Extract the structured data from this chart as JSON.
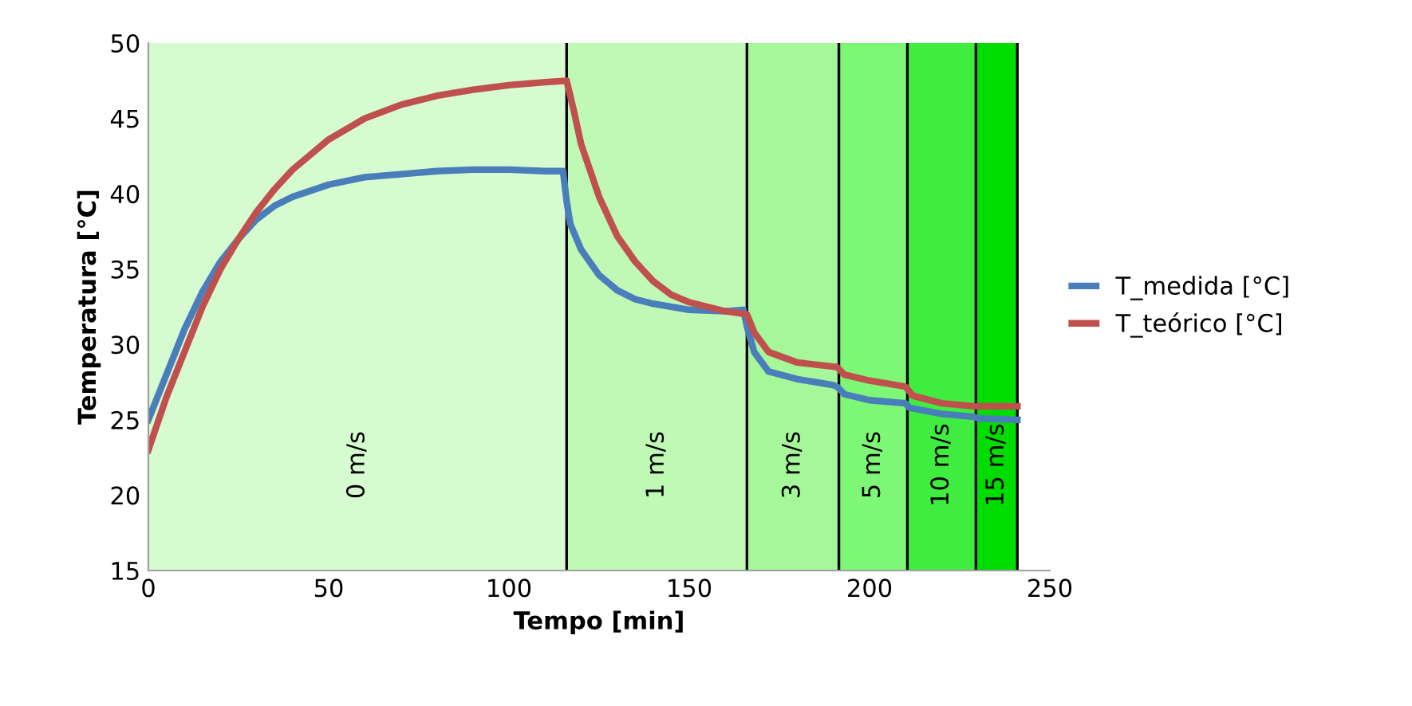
{
  "chart_data": {
    "type": "line",
    "xlabel": "Tempo [min]",
    "ylabel": "Temperatura [°C]",
    "xlim": [
      0,
      250
    ],
    "xticks": [
      0,
      50,
      100,
      150,
      200,
      250
    ],
    "ylim": [
      15,
      50
    ],
    "yticks": [
      15,
      20,
      25,
      30,
      35,
      40,
      45,
      50
    ],
    "grid": false,
    "legend": "right",
    "series": [
      {
        "name": "T_medida [°C]",
        "color": "#4a7ebb",
        "x": [
          0,
          5,
          10,
          15,
          20,
          25,
          30,
          35,
          40,
          50,
          60,
          70,
          80,
          90,
          100,
          110,
          115,
          116,
          117,
          120,
          125,
          130,
          135,
          140,
          150,
          160,
          165,
          166,
          168,
          172,
          180,
          190,
          191,
          193,
          200,
          210,
          211,
          220,
          229,
          230,
          241
        ],
        "values": [
          25,
          28,
          31,
          33.5,
          35.5,
          37,
          38.3,
          39.2,
          39.8,
          40.6,
          41.1,
          41.3,
          41.5,
          41.6,
          41.6,
          41.5,
          41.5,
          39.5,
          38,
          36.3,
          34.6,
          33.6,
          33,
          32.7,
          32.3,
          32.2,
          32.3,
          31.2,
          29.5,
          28.2,
          27.7,
          27.3,
          27.2,
          26.7,
          26.3,
          26.1,
          25.8,
          25.4,
          25.2,
          25.1,
          25
        ]
      },
      {
        "name": "T_teórico [°C]",
        "color": "#c0504d",
        "x": [
          0,
          5,
          10,
          15,
          20,
          25,
          30,
          35,
          40,
          50,
          60,
          70,
          80,
          90,
          100,
          110,
          116,
          118,
          120,
          125,
          130,
          135,
          140,
          145,
          150,
          160,
          166,
          168,
          172,
          180,
          191,
          193,
          200,
          210,
          212,
          220,
          229,
          241
        ],
        "values": [
          23,
          26.5,
          29.5,
          32.5,
          35,
          37,
          38.8,
          40.3,
          41.6,
          43.6,
          45,
          45.9,
          46.5,
          46.9,
          47.2,
          47.4,
          47.5,
          45.5,
          43.3,
          39.8,
          37.2,
          35.5,
          34.2,
          33.3,
          32.8,
          32.2,
          32,
          30.8,
          29.5,
          28.8,
          28.5,
          28,
          27.6,
          27.2,
          26.6,
          26.1,
          25.9,
          25.9
        ]
      }
    ],
    "bands": [
      {
        "axis": "x",
        "from": 0,
        "to": 116,
        "label": "0 m/s",
        "color": "#d7fbd1"
      },
      {
        "axis": "x",
        "from": 116,
        "to": 166,
        "label": "1 m/s",
        "color": "#c0f9b5"
      },
      {
        "axis": "x",
        "from": 166,
        "to": 191.5,
        "label": "3 m/s",
        "color": "#a5f79a"
      },
      {
        "axis": "x",
        "from": 191.5,
        "to": 210.5,
        "label": "5 m/s",
        "color": "#7df775"
      },
      {
        "axis": "x",
        "from": 210.5,
        "to": 229.5,
        "label": "10 m/s",
        "color": "#40ec40"
      },
      {
        "axis": "x",
        "from": 229.5,
        "to": 241,
        "label": "15 m/s",
        "color": "#00dc00"
      }
    ],
    "ref_lines": [
      {
        "axis": "x",
        "value": 116
      },
      {
        "axis": "x",
        "value": 166
      },
      {
        "axis": "x",
        "value": 191.5
      },
      {
        "axis": "x",
        "value": 210.5
      },
      {
        "axis": "x",
        "value": 229.5
      },
      {
        "axis": "x",
        "value": 241
      }
    ]
  }
}
